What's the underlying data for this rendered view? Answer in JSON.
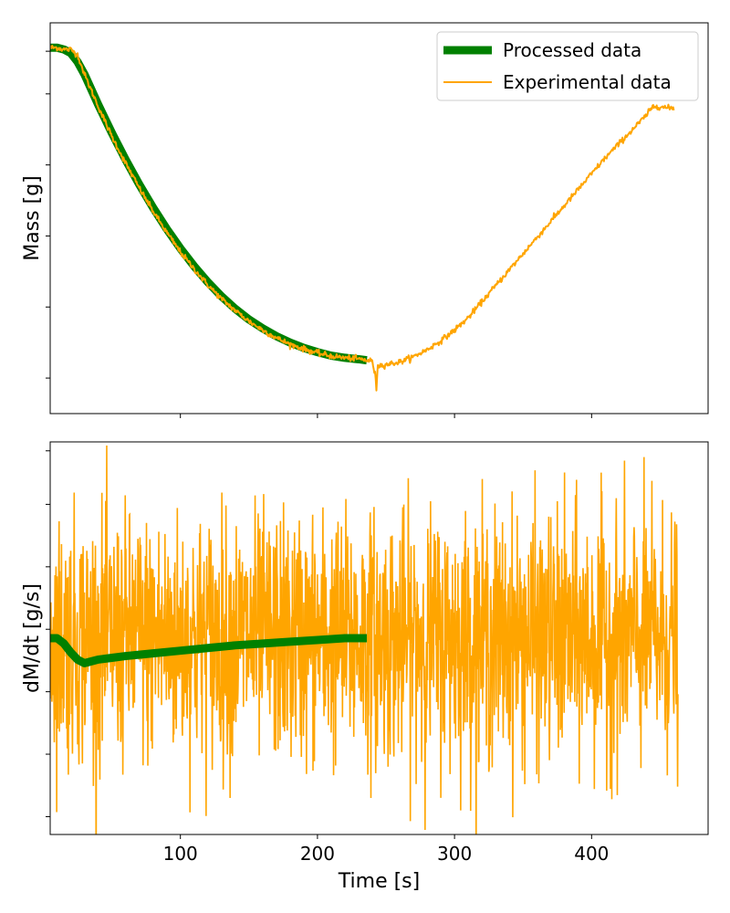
{
  "chart_data": [
    {
      "type": "line",
      "title": "",
      "xlabel": "",
      "ylabel": "Mass [g]",
      "xlim": [
        5,
        485
      ],
      "ylim": [
        -0.05,
        1.05
      ],
      "y_tick_labels_shown": false,
      "x_tick_labels_shown": false,
      "grid": false,
      "legend_position": "top-right",
      "legend": [
        {
          "name": "Processed data",
          "color": "#008000"
        },
        {
          "name": "Experimental data",
          "color": "#FFA500"
        }
      ],
      "series": [
        {
          "name": "Processed data",
          "color": "#008000",
          "x": [
            5,
            10,
            15,
            20,
            25,
            30,
            40,
            50,
            60,
            70,
            80,
            90,
            100,
            110,
            120,
            130,
            140,
            150,
            160,
            170,
            180,
            190,
            200,
            210,
            220,
            230,
            236
          ],
          "y": [
            0.98,
            0.98,
            0.975,
            0.965,
            0.94,
            0.905,
            0.82,
            0.74,
            0.665,
            0.595,
            0.53,
            0.47,
            0.415,
            0.365,
            0.32,
            0.28,
            0.245,
            0.215,
            0.19,
            0.168,
            0.15,
            0.135,
            0.123,
            0.113,
            0.107,
            0.103,
            0.1
          ]
        },
        {
          "name": "Experimental data",
          "color": "#FFA500",
          "x": [
            5,
            10,
            15,
            20,
            25,
            30,
            40,
            50,
            60,
            70,
            80,
            90,
            100,
            110,
            120,
            130,
            140,
            150,
            160,
            170,
            180,
            190,
            200,
            210,
            220,
            230,
            236,
            240,
            242,
            243,
            244,
            245,
            250,
            260,
            270,
            280,
            290,
            300,
            310,
            320,
            330,
            340,
            350,
            360,
            370,
            380,
            390,
            400,
            410,
            420,
            430,
            440,
            445,
            450,
            455,
            460
          ],
          "y": [
            0.98,
            0.98,
            0.975,
            0.975,
            0.96,
            0.905,
            0.815,
            0.73,
            0.655,
            0.585,
            0.52,
            0.46,
            0.405,
            0.357,
            0.312,
            0.273,
            0.24,
            0.21,
            0.185,
            0.163,
            0.145,
            0.132,
            0.12,
            0.112,
            0.107,
            0.104,
            0.1,
            0.098,
            0.06,
            0.02,
            0.09,
            0.085,
            0.088,
            0.095,
            0.11,
            0.13,
            0.155,
            0.185,
            0.22,
            0.265,
            0.31,
            0.355,
            0.4,
            0.445,
            0.49,
            0.535,
            0.58,
            0.625,
            0.67,
            0.71,
            0.75,
            0.79,
            0.815,
            0.815,
            0.81,
            0.81
          ]
        }
      ]
    },
    {
      "type": "line",
      "title": "",
      "xlabel": "Time [s]",
      "ylabel": "dM/dt [g/s]",
      "xlim": [
        5,
        485
      ],
      "ylim": [
        -1.1,
        1.1
      ],
      "x_ticks": [
        "100",
        "200",
        "300",
        "400"
      ],
      "x_tick_values": [
        100,
        200,
        300,
        400
      ],
      "y_tick_labels_shown": false,
      "grid": false,
      "series": [
        {
          "name": "Processed data",
          "color": "#008000",
          "x": [
            5,
            10,
            15,
            20,
            25,
            30,
            35,
            40,
            50,
            60,
            80,
            100,
            120,
            140,
            160,
            180,
            200,
            220,
            236
          ],
          "y": [
            0.0,
            0.0,
            -0.03,
            -0.08,
            -0.12,
            -0.14,
            -0.13,
            -0.12,
            -0.11,
            -0.1,
            -0.085,
            -0.07,
            -0.055,
            -0.04,
            -0.03,
            -0.02,
            -0.01,
            0.0,
            0.0
          ]
        },
        {
          "name": "Experimental data",
          "color": "#FFA500",
          "x_range": [
            5,
            463
          ],
          "noise_amplitude_approx": 0.9,
          "mean_approx": 0.0
        }
      ]
    }
  ]
}
